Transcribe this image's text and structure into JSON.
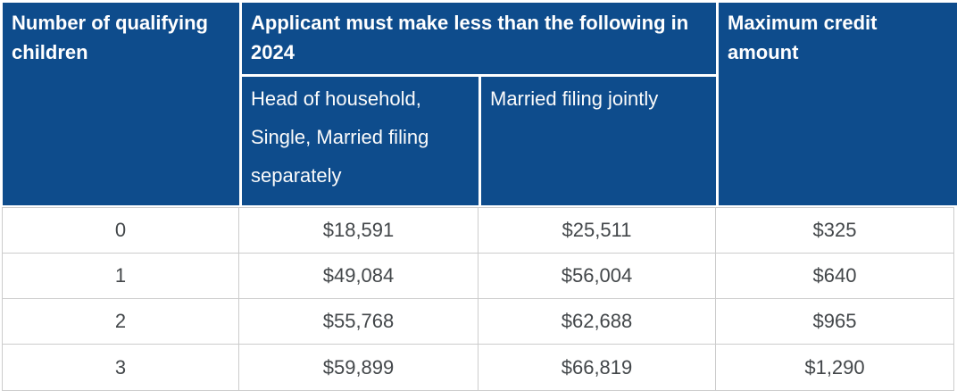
{
  "table": {
    "header": {
      "children_label": "Number of qualifying children",
      "income_label": "Applicant must make less than the following in 2024",
      "max_credit_label": "Maximum credit amount",
      "sub_hoh_label": "Head of household, Single, Married filing separately",
      "sub_mfj_label": "Married filing jointly"
    },
    "columns": [
      "Number of qualifying children",
      "Head of household, Single, Married filing separately",
      "Married filing jointly",
      "Maximum credit amount"
    ],
    "rows": [
      [
        "0",
        "$18,591",
        "$25,511",
        "$325"
      ],
      [
        "1",
        "$49,084",
        "$56,004",
        "$640"
      ],
      [
        "2",
        "$55,768",
        "$62,688",
        "$965"
      ],
      [
        "3",
        "$59,899",
        "$66,819",
        "$1,290"
      ]
    ],
    "colors": {
      "header_bg": "#0e4c8c",
      "header_text": "#ffffff",
      "body_text": "#43474a",
      "border": "#cccccc"
    }
  }
}
